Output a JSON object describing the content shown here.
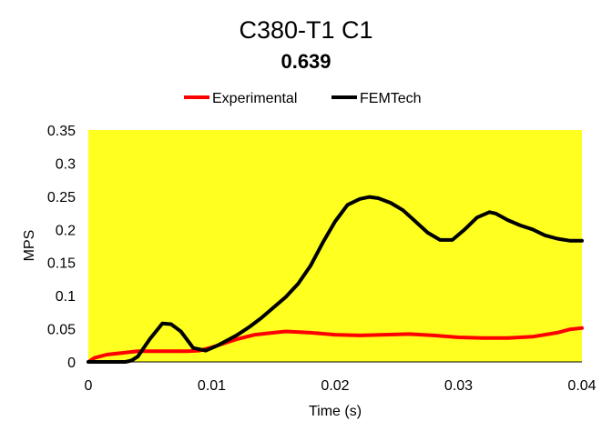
{
  "chart_data": {
    "type": "line",
    "title": "C380-T1 C1",
    "subtitle": "0.639",
    "xlabel": "Time (s)",
    "ylabel": "MPS",
    "xlim": [
      0,
      0.04
    ],
    "ylim": [
      0,
      0.35
    ],
    "xticks": [
      0,
      0.01,
      0.02,
      0.03,
      0.04
    ],
    "xtick_labels": [
      "0",
      "0.01",
      "0.02",
      "0.03",
      "0.04"
    ],
    "yticks": [
      0,
      0.05,
      0.1,
      0.15,
      0.2,
      0.25,
      0.3,
      0.35
    ],
    "ytick_labels": [
      "0",
      "0.05",
      "0.1",
      "0.15",
      "0.2",
      "0.25",
      "0.3",
      "0.35"
    ],
    "grid": false,
    "legend_position": "top",
    "plot_background": "#ffff20",
    "series": [
      {
        "name": "Experimental",
        "color": "#ff0000",
        "x": [
          0,
          0.0005,
          0.0015,
          0.0025,
          0.004,
          0.006,
          0.008,
          0.009,
          0.01,
          0.011,
          0.012,
          0.0135,
          0.015,
          0.016,
          0.018,
          0.02,
          0.022,
          0.024,
          0.026,
          0.028,
          0.03,
          0.032,
          0.034,
          0.036,
          0.038,
          0.039,
          0.04
        ],
        "values": [
          0,
          0.006,
          0.011,
          0.013,
          0.016,
          0.016,
          0.016,
          0.017,
          0.022,
          0.028,
          0.034,
          0.041,
          0.044,
          0.046,
          0.044,
          0.041,
          0.04,
          0.041,
          0.042,
          0.04,
          0.037,
          0.036,
          0.036,
          0.038,
          0.044,
          0.049,
          0.051
        ]
      },
      {
        "name": "FEMTech",
        "color": "#000000",
        "x": [
          0,
          0.002,
          0.003,
          0.0035,
          0.004,
          0.005,
          0.006,
          0.0067,
          0.0075,
          0.0085,
          0.0095,
          0.0105,
          0.012,
          0.013,
          0.014,
          0.016,
          0.017,
          0.018,
          0.019,
          0.02,
          0.021,
          0.022,
          0.0228,
          0.0235,
          0.0245,
          0.0255,
          0.0265,
          0.0275,
          0.0285,
          0.0295,
          0.0305,
          0.0315,
          0.0325,
          0.033,
          0.034,
          0.035,
          0.036,
          0.037,
          0.038,
          0.039,
          0.04
        ],
        "values": [
          0,
          0,
          0,
          0.002,
          0.008,
          0.035,
          0.058,
          0.057,
          0.046,
          0.021,
          0.017,
          0.025,
          0.04,
          0.052,
          0.066,
          0.098,
          0.118,
          0.145,
          0.18,
          0.212,
          0.237,
          0.246,
          0.249,
          0.247,
          0.24,
          0.229,
          0.212,
          0.195,
          0.184,
          0.184,
          0.2,
          0.218,
          0.226,
          0.224,
          0.214,
          0.206,
          0.2,
          0.191,
          0.186,
          0.183,
          0.183
        ]
      }
    ]
  }
}
